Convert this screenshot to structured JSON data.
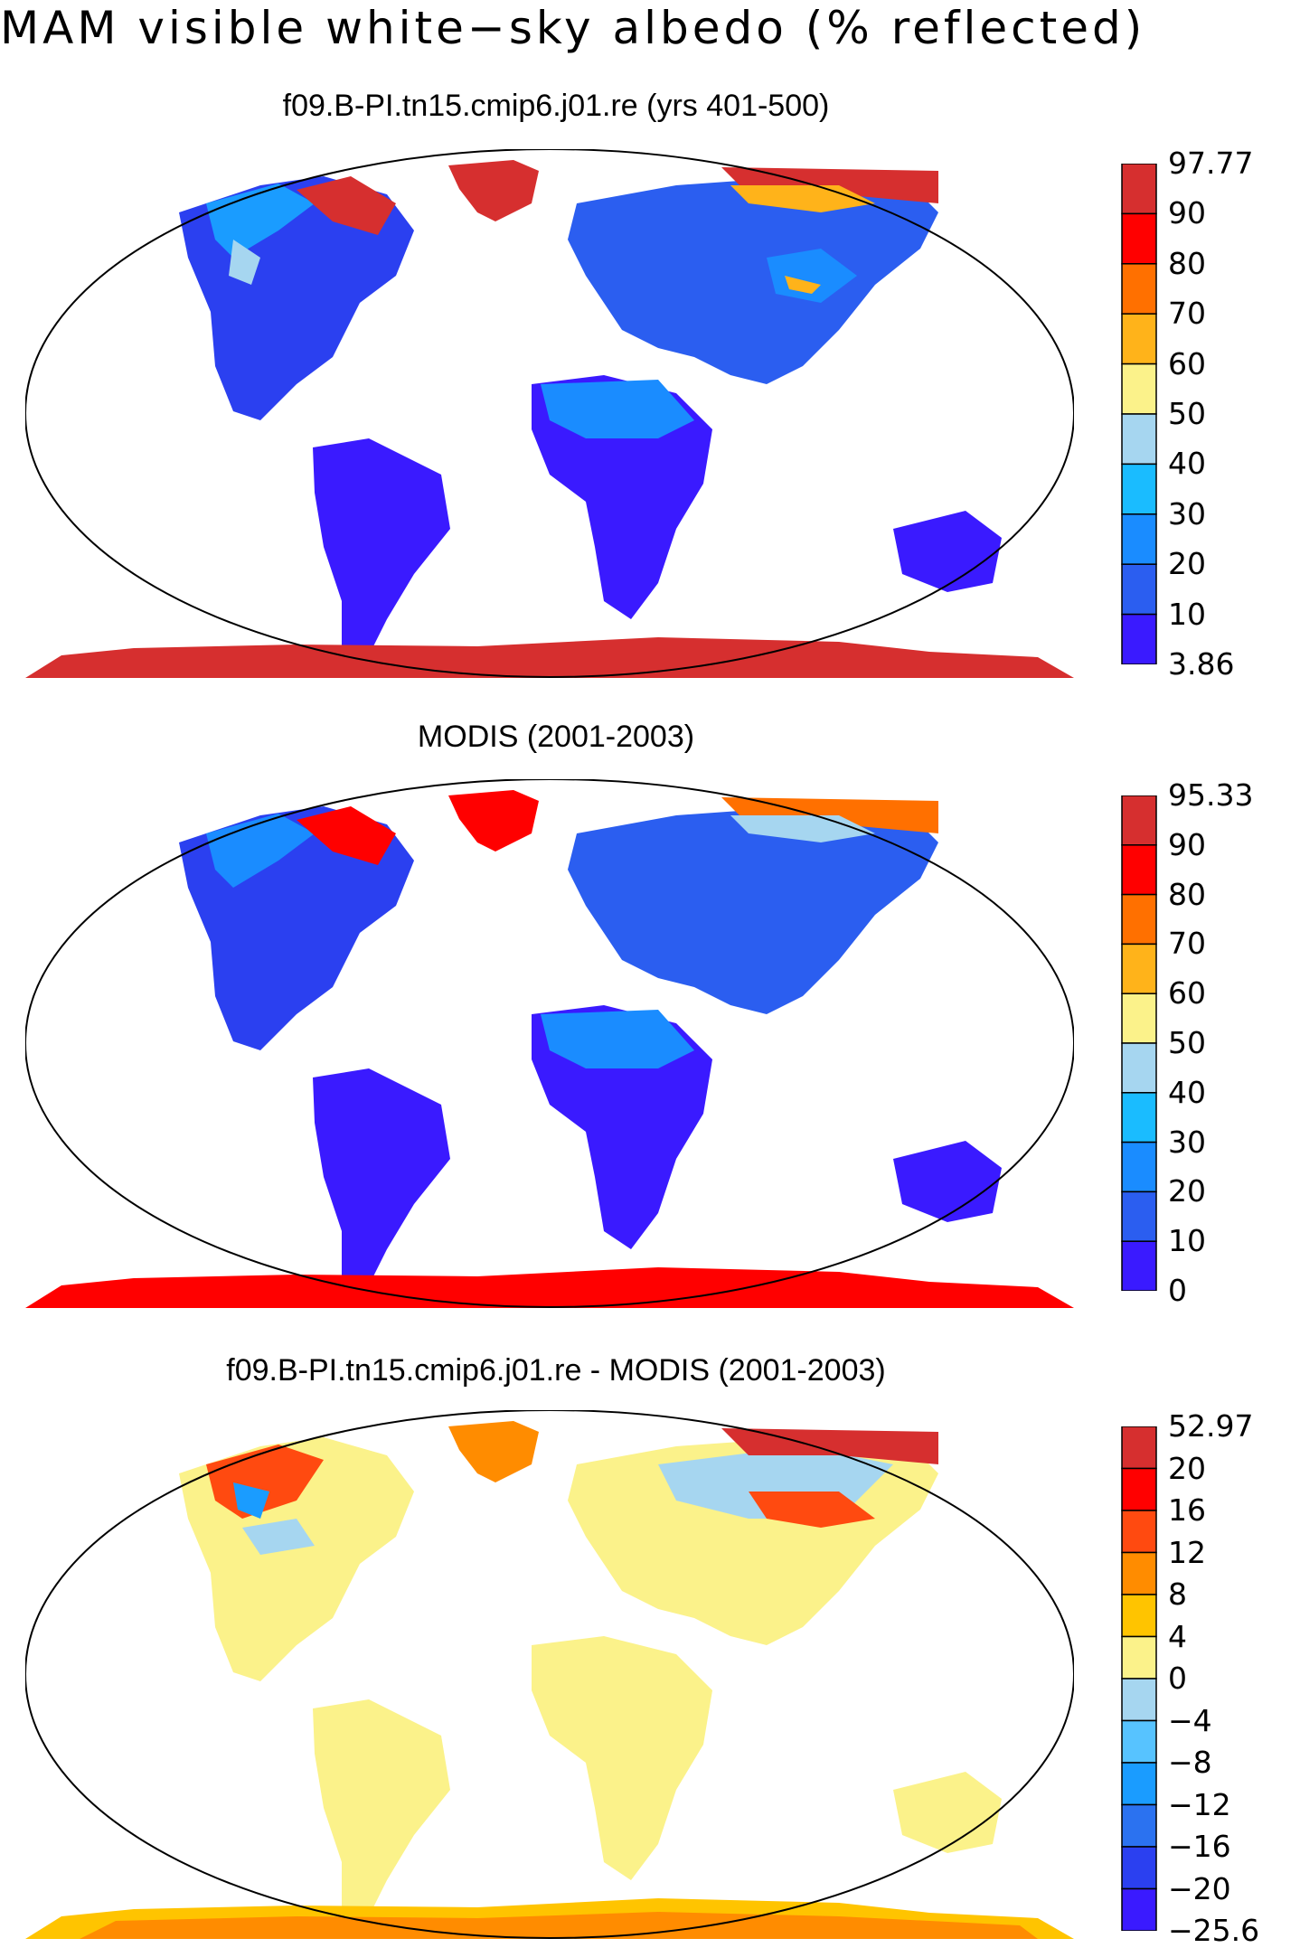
{
  "title": "MAM visible white−sky albedo (% reflected)",
  "panels": [
    {
      "title": "f09.B-PI.tn15.cmip6.j01.re (yrs 401-500)",
      "colorbar": {
        "labels": [
          "97.77",
          "90",
          "80",
          "70",
          "60",
          "50",
          "40",
          "30",
          "20",
          "10",
          "3.86"
        ],
        "colors": [
          "#d62f2f",
          "#ff0000",
          "#ff7000",
          "#ffb31a",
          "#fbf28a",
          "#a6d6f0",
          "#1abcff",
          "#1a8cff",
          "#2b5ef0",
          "#3a1aff"
        ]
      }
    },
    {
      "title": "MODIS (2001-2003)",
      "colorbar": {
        "labels": [
          "95.33",
          "90",
          "80",
          "70",
          "60",
          "50",
          "40",
          "30",
          "20",
          "10",
          "0"
        ],
        "colors": [
          "#d62f2f",
          "#ff0000",
          "#ff7000",
          "#ffb31a",
          "#fbf28a",
          "#a6d6f0",
          "#1abcff",
          "#1a8cff",
          "#2b5ef0",
          "#3a1aff"
        ]
      }
    },
    {
      "title": "f09.B-PI.tn15.cmip6.j01.re - MODIS (2001-2003)",
      "colorbar": {
        "labels": [
          "52.97",
          "20",
          "16",
          "12",
          "8",
          "4",
          "0",
          "−4",
          "−8",
          "−12",
          "−16",
          "−20",
          "−25.6"
        ],
        "colors": [
          "#d62f2f",
          "#ff0000",
          "#ff4a10",
          "#ff8c00",
          "#ffc400",
          "#fbf28a",
          "#a6d6f0",
          "#57c3ff",
          "#1a9cff",
          "#2b72f0",
          "#2b40f0",
          "#3a1aff"
        ]
      }
    }
  ]
}
